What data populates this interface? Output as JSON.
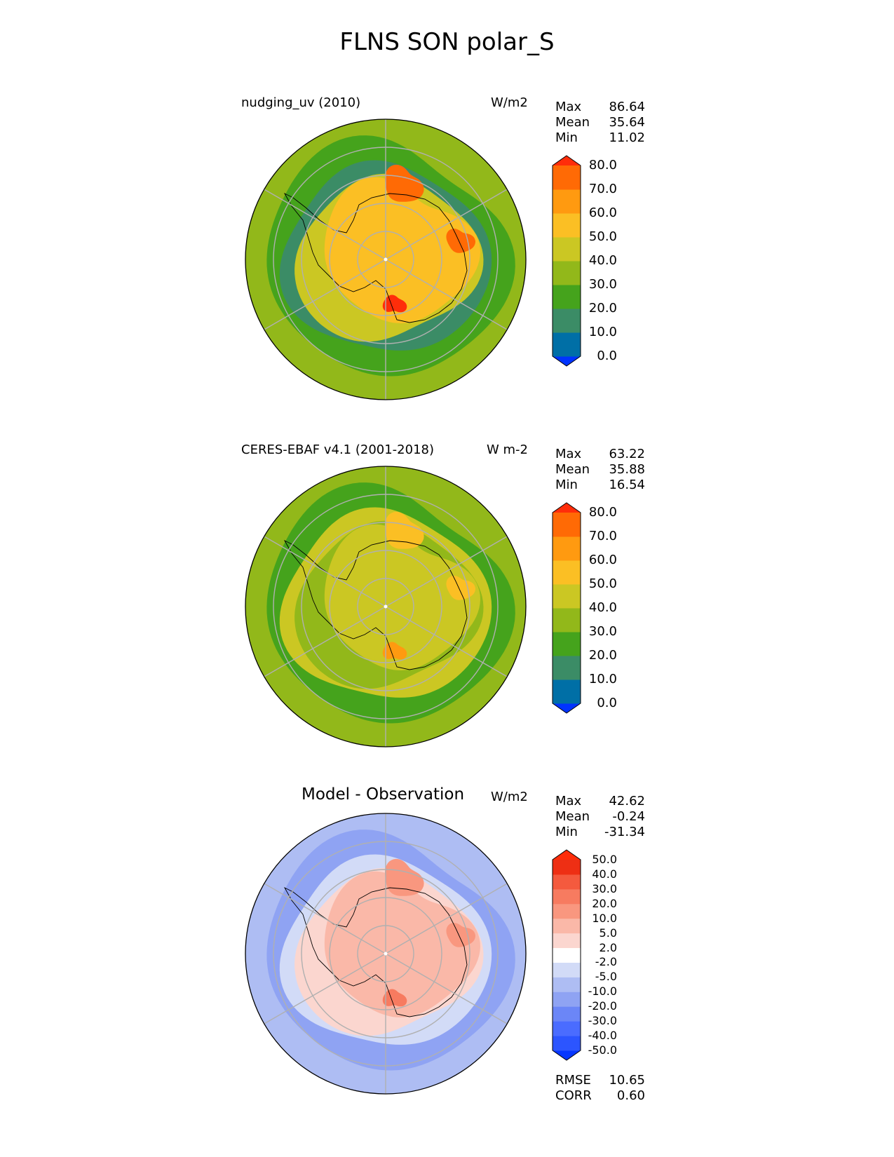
{
  "figure": {
    "title": "FLNS SON polar_S"
  },
  "panels": [
    {
      "label_left": "nudging_uv (2010)",
      "label_right": "W/m2",
      "stats": [
        {
          "name": "Max",
          "value": "86.64"
        },
        {
          "name": "Mean",
          "value": "35.64"
        },
        {
          "name": "Min",
          "value": "11.02"
        }
      ]
    },
    {
      "label_left": "CERES-EBAF v4.1 (2001-2018)",
      "label_right": "W m-2",
      "stats": [
        {
          "name": "Max",
          "value": "63.22"
        },
        {
          "name": "Mean",
          "value": "35.88"
        },
        {
          "name": "Min",
          "value": "16.54"
        }
      ]
    },
    {
      "label_left": "Model - Observation",
      "label_right": "W/m2",
      "stats": [
        {
          "name": "Max",
          "value": "42.62"
        },
        {
          "name": "Mean",
          "value": "-0.24"
        },
        {
          "name": "Min",
          "value": "-31.34"
        }
      ]
    }
  ],
  "error_metrics": [
    {
      "name": "RMSE",
      "value": "10.65"
    },
    {
      "name": "CORR",
      "value": "0.60"
    }
  ],
  "chart_data": [
    {
      "type": "heatmap",
      "projection": "south polar stereographic",
      "title": "nudging_uv (2010)",
      "units": "W/m2",
      "colorbar": {
        "levels": [
          "0.0",
          "10.0",
          "20.0",
          "30.0",
          "40.0",
          "50.0",
          "60.0",
          "70.0",
          "80.0"
        ],
        "colors": [
          "#0033ff",
          "#006fa6",
          "#3b8c66",
          "#45a31c",
          "#92b81a",
          "#cbc723",
          "#fbbf24",
          "#ff9a10",
          "#ff6a05",
          "#ff2d0a"
        ],
        "extend": "both"
      },
      "summary": {
        "max": 86.64,
        "mean": 35.64,
        "min": 11.02
      }
    },
    {
      "type": "heatmap",
      "projection": "south polar stereographic",
      "title": "CERES-EBAF v4.1 (2001-2018)",
      "units": "W m-2",
      "colorbar": {
        "levels": [
          "0.0",
          "10.0",
          "20.0",
          "30.0",
          "40.0",
          "50.0",
          "60.0",
          "70.0",
          "80.0"
        ],
        "colors": [
          "#0033ff",
          "#006fa6",
          "#3b8c66",
          "#45a31c",
          "#92b81a",
          "#cbc723",
          "#fbbf24",
          "#ff9a10",
          "#ff6a05",
          "#ff2d0a"
        ],
        "extend": "both"
      },
      "summary": {
        "max": 63.22,
        "mean": 35.88,
        "min": 16.54
      }
    },
    {
      "type": "heatmap",
      "projection": "south polar stereographic",
      "title": "Model - Observation",
      "units": "W/m2",
      "colorbar": {
        "levels": [
          "-50.0",
          "-40.0",
          "-30.0",
          "-20.0",
          "-10.0",
          "-5.0",
          "-2.0",
          "2.0",
          "5.0",
          "10.0",
          "20.0",
          "30.0",
          "40.0",
          "50.0"
        ],
        "colors": [
          "#0636ff",
          "#2c55ff",
          "#4a6cff",
          "#6b86f7",
          "#8fa3f3",
          "#aebdf3",
          "#d2dbf7",
          "#ffffff",
          "#fbd6cf",
          "#fab8a8",
          "#f9977f",
          "#f77b60",
          "#f45a3e",
          "#ee2f14",
          "#ff2d0a"
        ],
        "extend": "both"
      },
      "summary": {
        "max": 42.62,
        "mean": -0.24,
        "min": -31.34
      },
      "rmse": 10.65,
      "corr": 0.6
    }
  ]
}
